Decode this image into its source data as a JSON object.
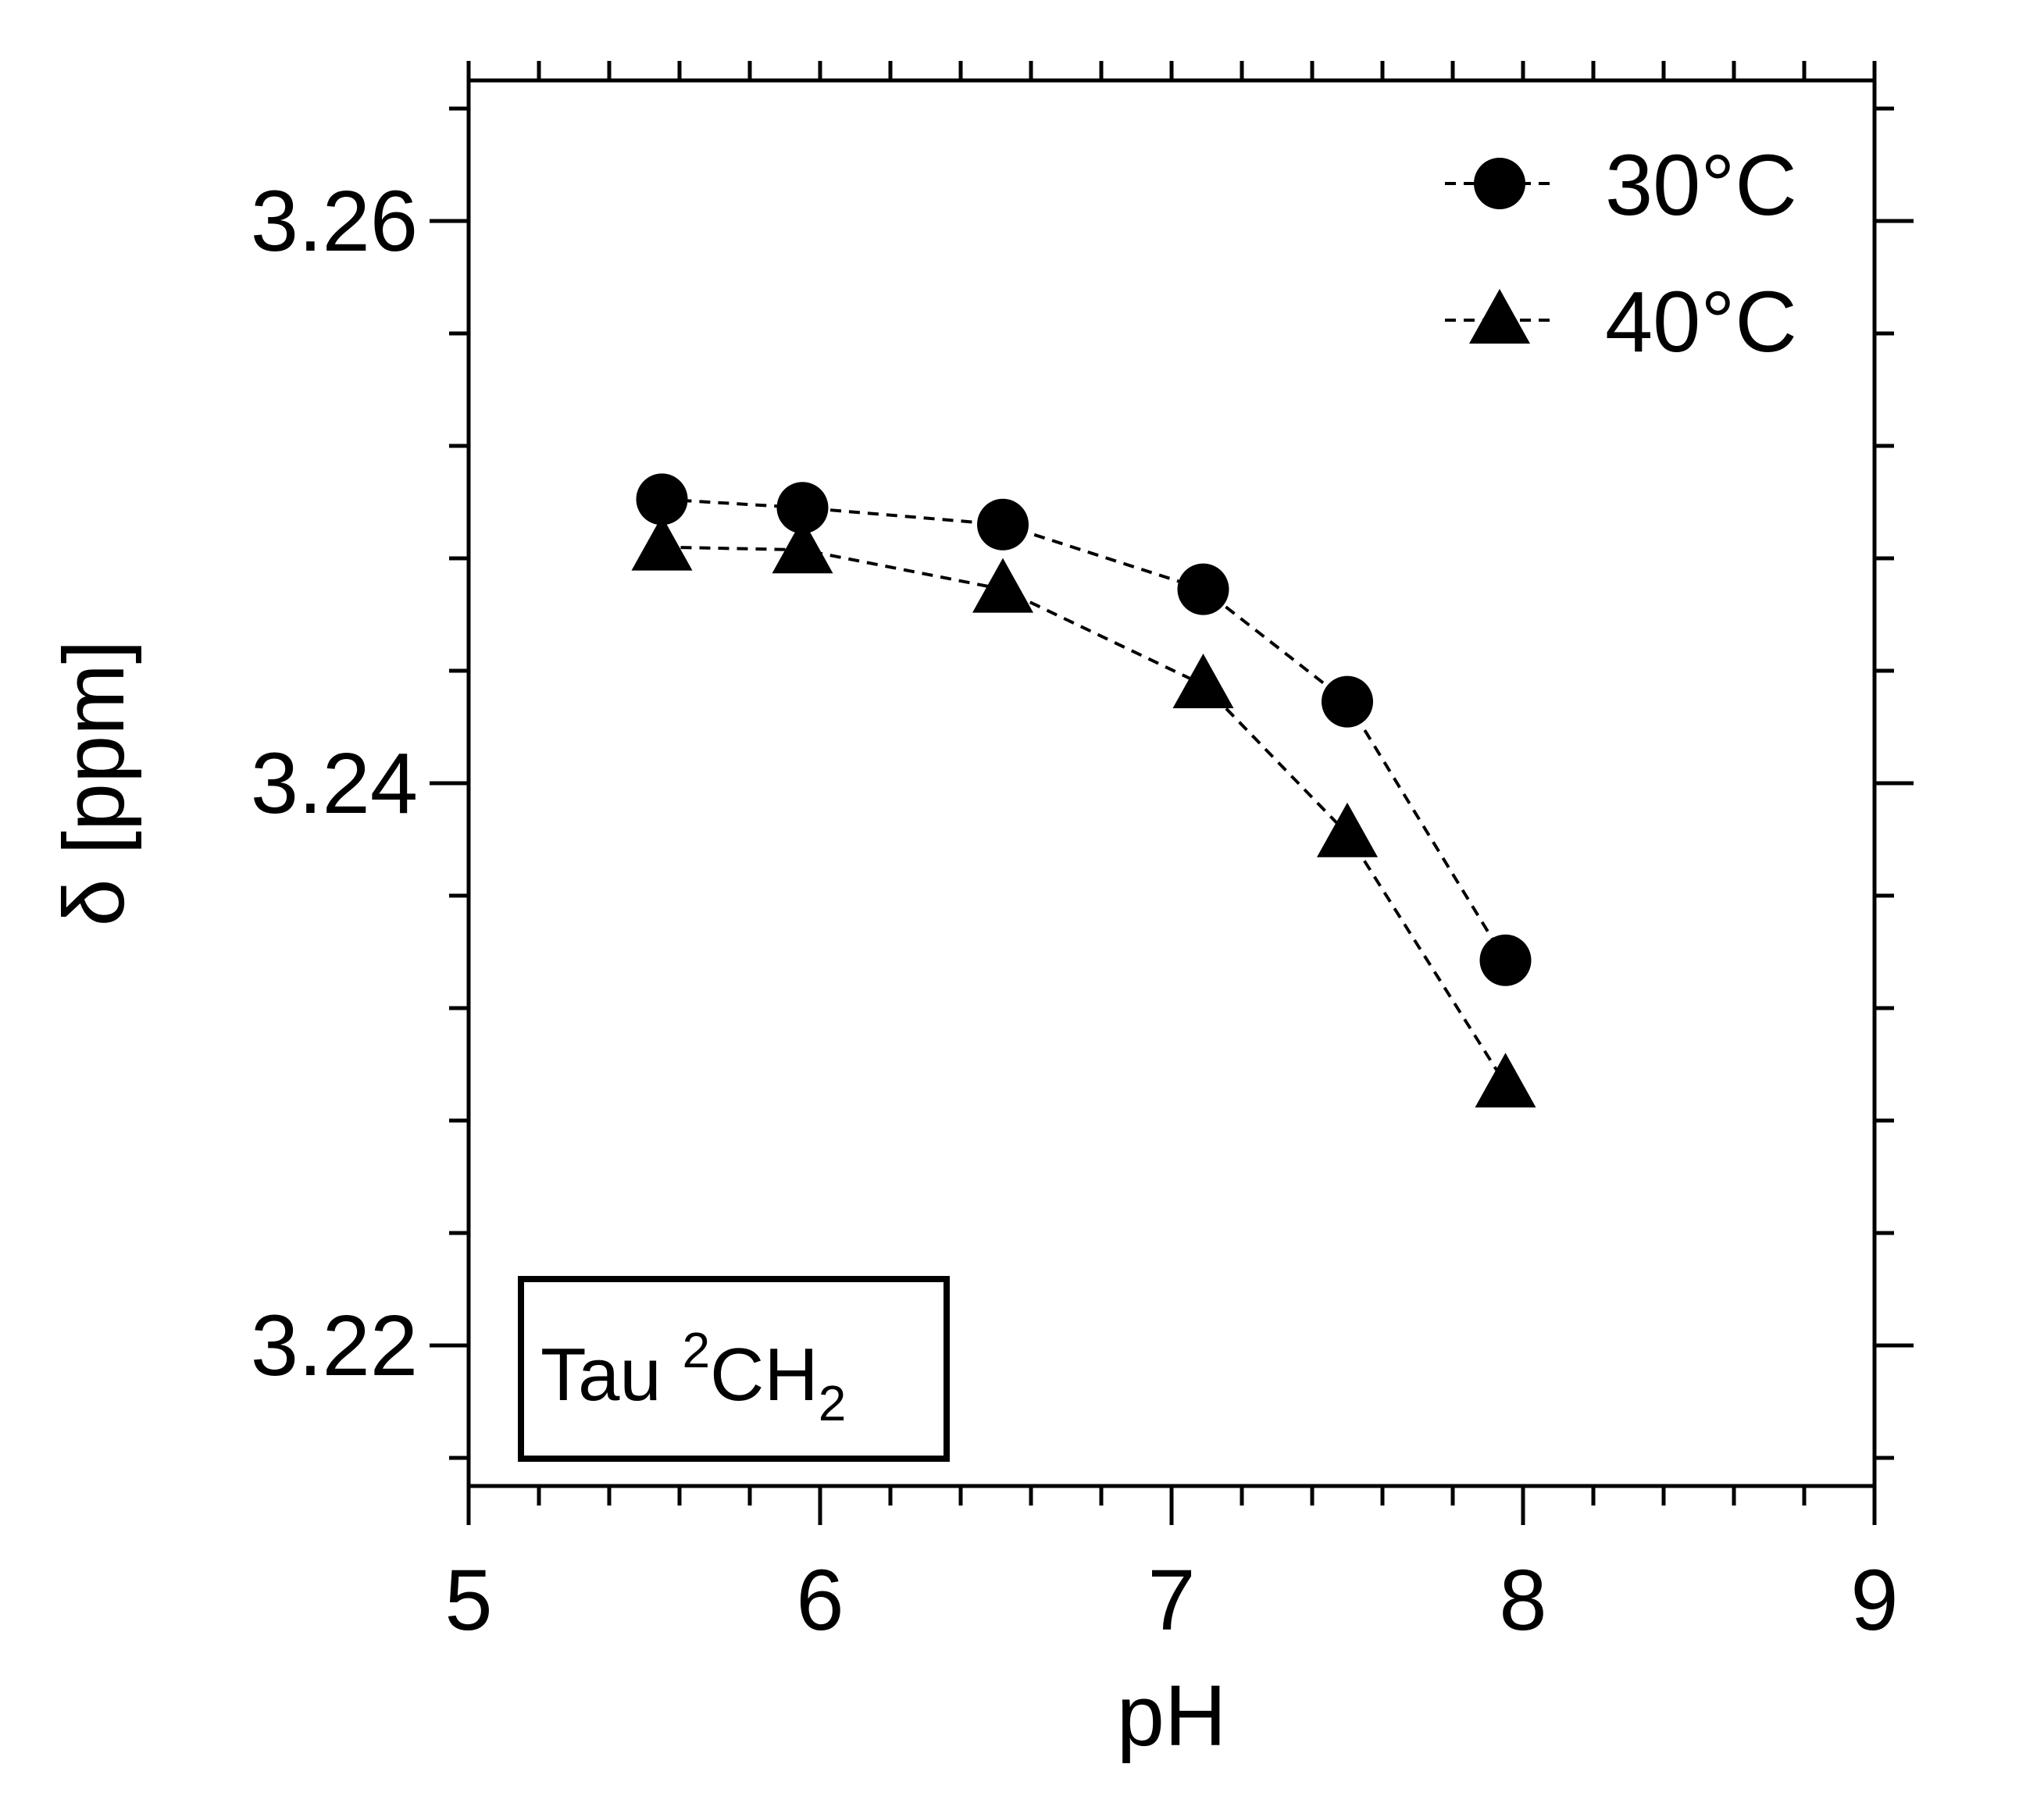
{
  "chart_data": {
    "type": "line",
    "title": "",
    "xlabel": "pH",
    "ylabel": "δ [ppm]",
    "xlim": [
      5,
      9
    ],
    "ylim": [
      3.215,
      3.265
    ],
    "x_ticks": [
      5,
      6,
      7,
      8,
      9
    ],
    "x_tick_labels": [
      "5",
      "6",
      "7",
      "8",
      "9"
    ],
    "y_ticks": [
      3.22,
      3.24,
      3.26
    ],
    "y_tick_labels": [
      "3.22",
      "3.24",
      "3.26"
    ],
    "x_minor_step": 0.2,
    "y_minor_step": 0.004,
    "grid": false,
    "legend_position": "top-right",
    "line_style": "dashed",
    "annotation": {
      "main": "Tau ",
      "sup": "2",
      "mid": "CH",
      "sub": "2",
      "position": "bottom-left"
    },
    "series": [
      {
        "name": "30°C",
        "marker": "circle",
        "color": "#000000",
        "x": [
          5.55,
          5.95,
          6.52,
          7.09,
          7.5,
          7.95
        ],
        "y": [
          3.2501,
          3.2498,
          3.2492,
          3.2469,
          3.2429,
          3.2337
        ]
      },
      {
        "name": "40°C",
        "marker": "triangle",
        "color": "#000000",
        "x": [
          5.55,
          5.95,
          6.52,
          7.09,
          7.5,
          7.95
        ],
        "y": [
          3.2484,
          3.2483,
          3.2469,
          3.2435,
          3.2382,
          3.2293
        ]
      }
    ]
  }
}
